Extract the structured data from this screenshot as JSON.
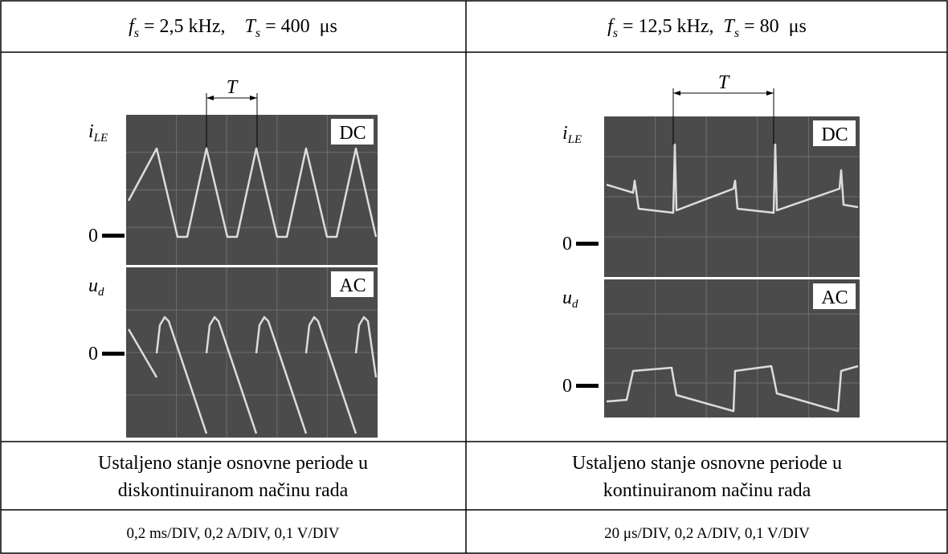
{
  "table": {
    "columns": [
      {
        "header": {
          "f": "f",
          "f_sub": "s",
          "f_value": " = 2,5 kHz,    ",
          "T": "T",
          "T_sub": "s",
          "T_value": " = 400  μs"
        },
        "scope": {
          "period_label": "T",
          "top_label": "i",
          "top_label_sub": "LE",
          "top_coupling": "DC",
          "top_zero": "0",
          "bottom_label": "u",
          "bottom_label_sub": "d",
          "bottom_coupling": "AC",
          "bottom_zero": "0"
        },
        "description": [
          "Ustaljeno stanje osnovne periode u",
          "diskontinuiranom načinu rada"
        ],
        "scale": "0,2 ms/DIV, 0,2 A/DIV, 0,1 V/DIV"
      },
      {
        "header": {
          "f": "f",
          "f_sub": "s",
          "f_value": " = 12,5 kHz,  ",
          "T": "T",
          "T_sub": "s",
          "T_value": " = 80  μs"
        },
        "scope": {
          "period_label": "T",
          "top_label": "i",
          "top_label_sub": "LE",
          "top_coupling": "DC",
          "top_zero": "0",
          "bottom_label": "u",
          "bottom_label_sub": "d",
          "bottom_coupling": "AC",
          "bottom_zero": "0"
        },
        "description": [
          "Ustaljeno stanje osnovne periode u",
          "kontinuiranom načinu rada"
        ],
        "scale": "20 μs/DIV, 0,2 A/DIV, 0,1 V/DIV"
      }
    ]
  }
}
